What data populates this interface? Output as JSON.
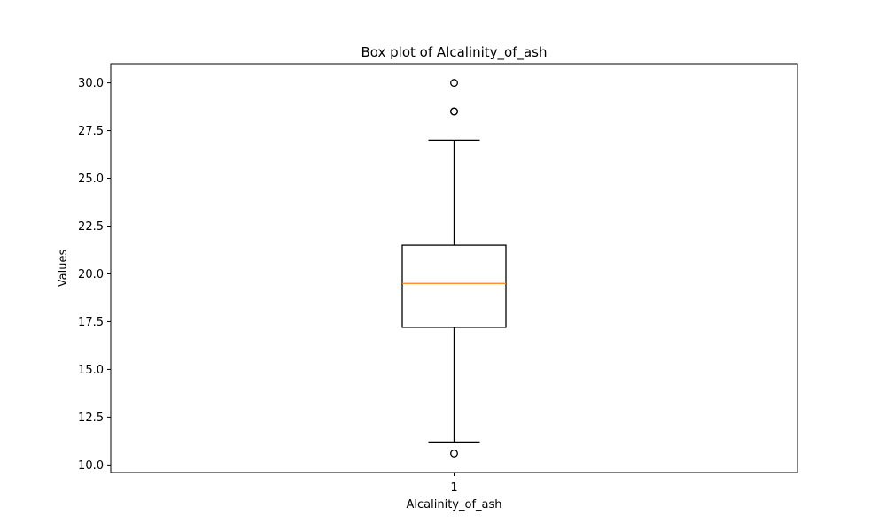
{
  "chart_data": {
    "type": "box",
    "title": "Box plot of Alcalinity_of_ash",
    "xlabel": "Alcalinity_of_ash",
    "ylabel": "Values",
    "categories": [
      "1"
    ],
    "ylim": [
      9.6,
      31.0
    ],
    "yticks": [
      "10.0",
      "12.5",
      "15.0",
      "17.5",
      "20.0",
      "22.5",
      "25.0",
      "27.5",
      "30.0"
    ],
    "grid": false,
    "boxes": [
      {
        "label": "1",
        "whisker_low": 11.2,
        "q1": 17.2,
        "median": 19.5,
        "q3": 21.5,
        "whisker_high": 27.0,
        "outliers": [
          30.0,
          28.5,
          28.5,
          10.6
        ]
      }
    ],
    "colors": {
      "box": "#000000",
      "median": "#ff7f0e"
    }
  }
}
